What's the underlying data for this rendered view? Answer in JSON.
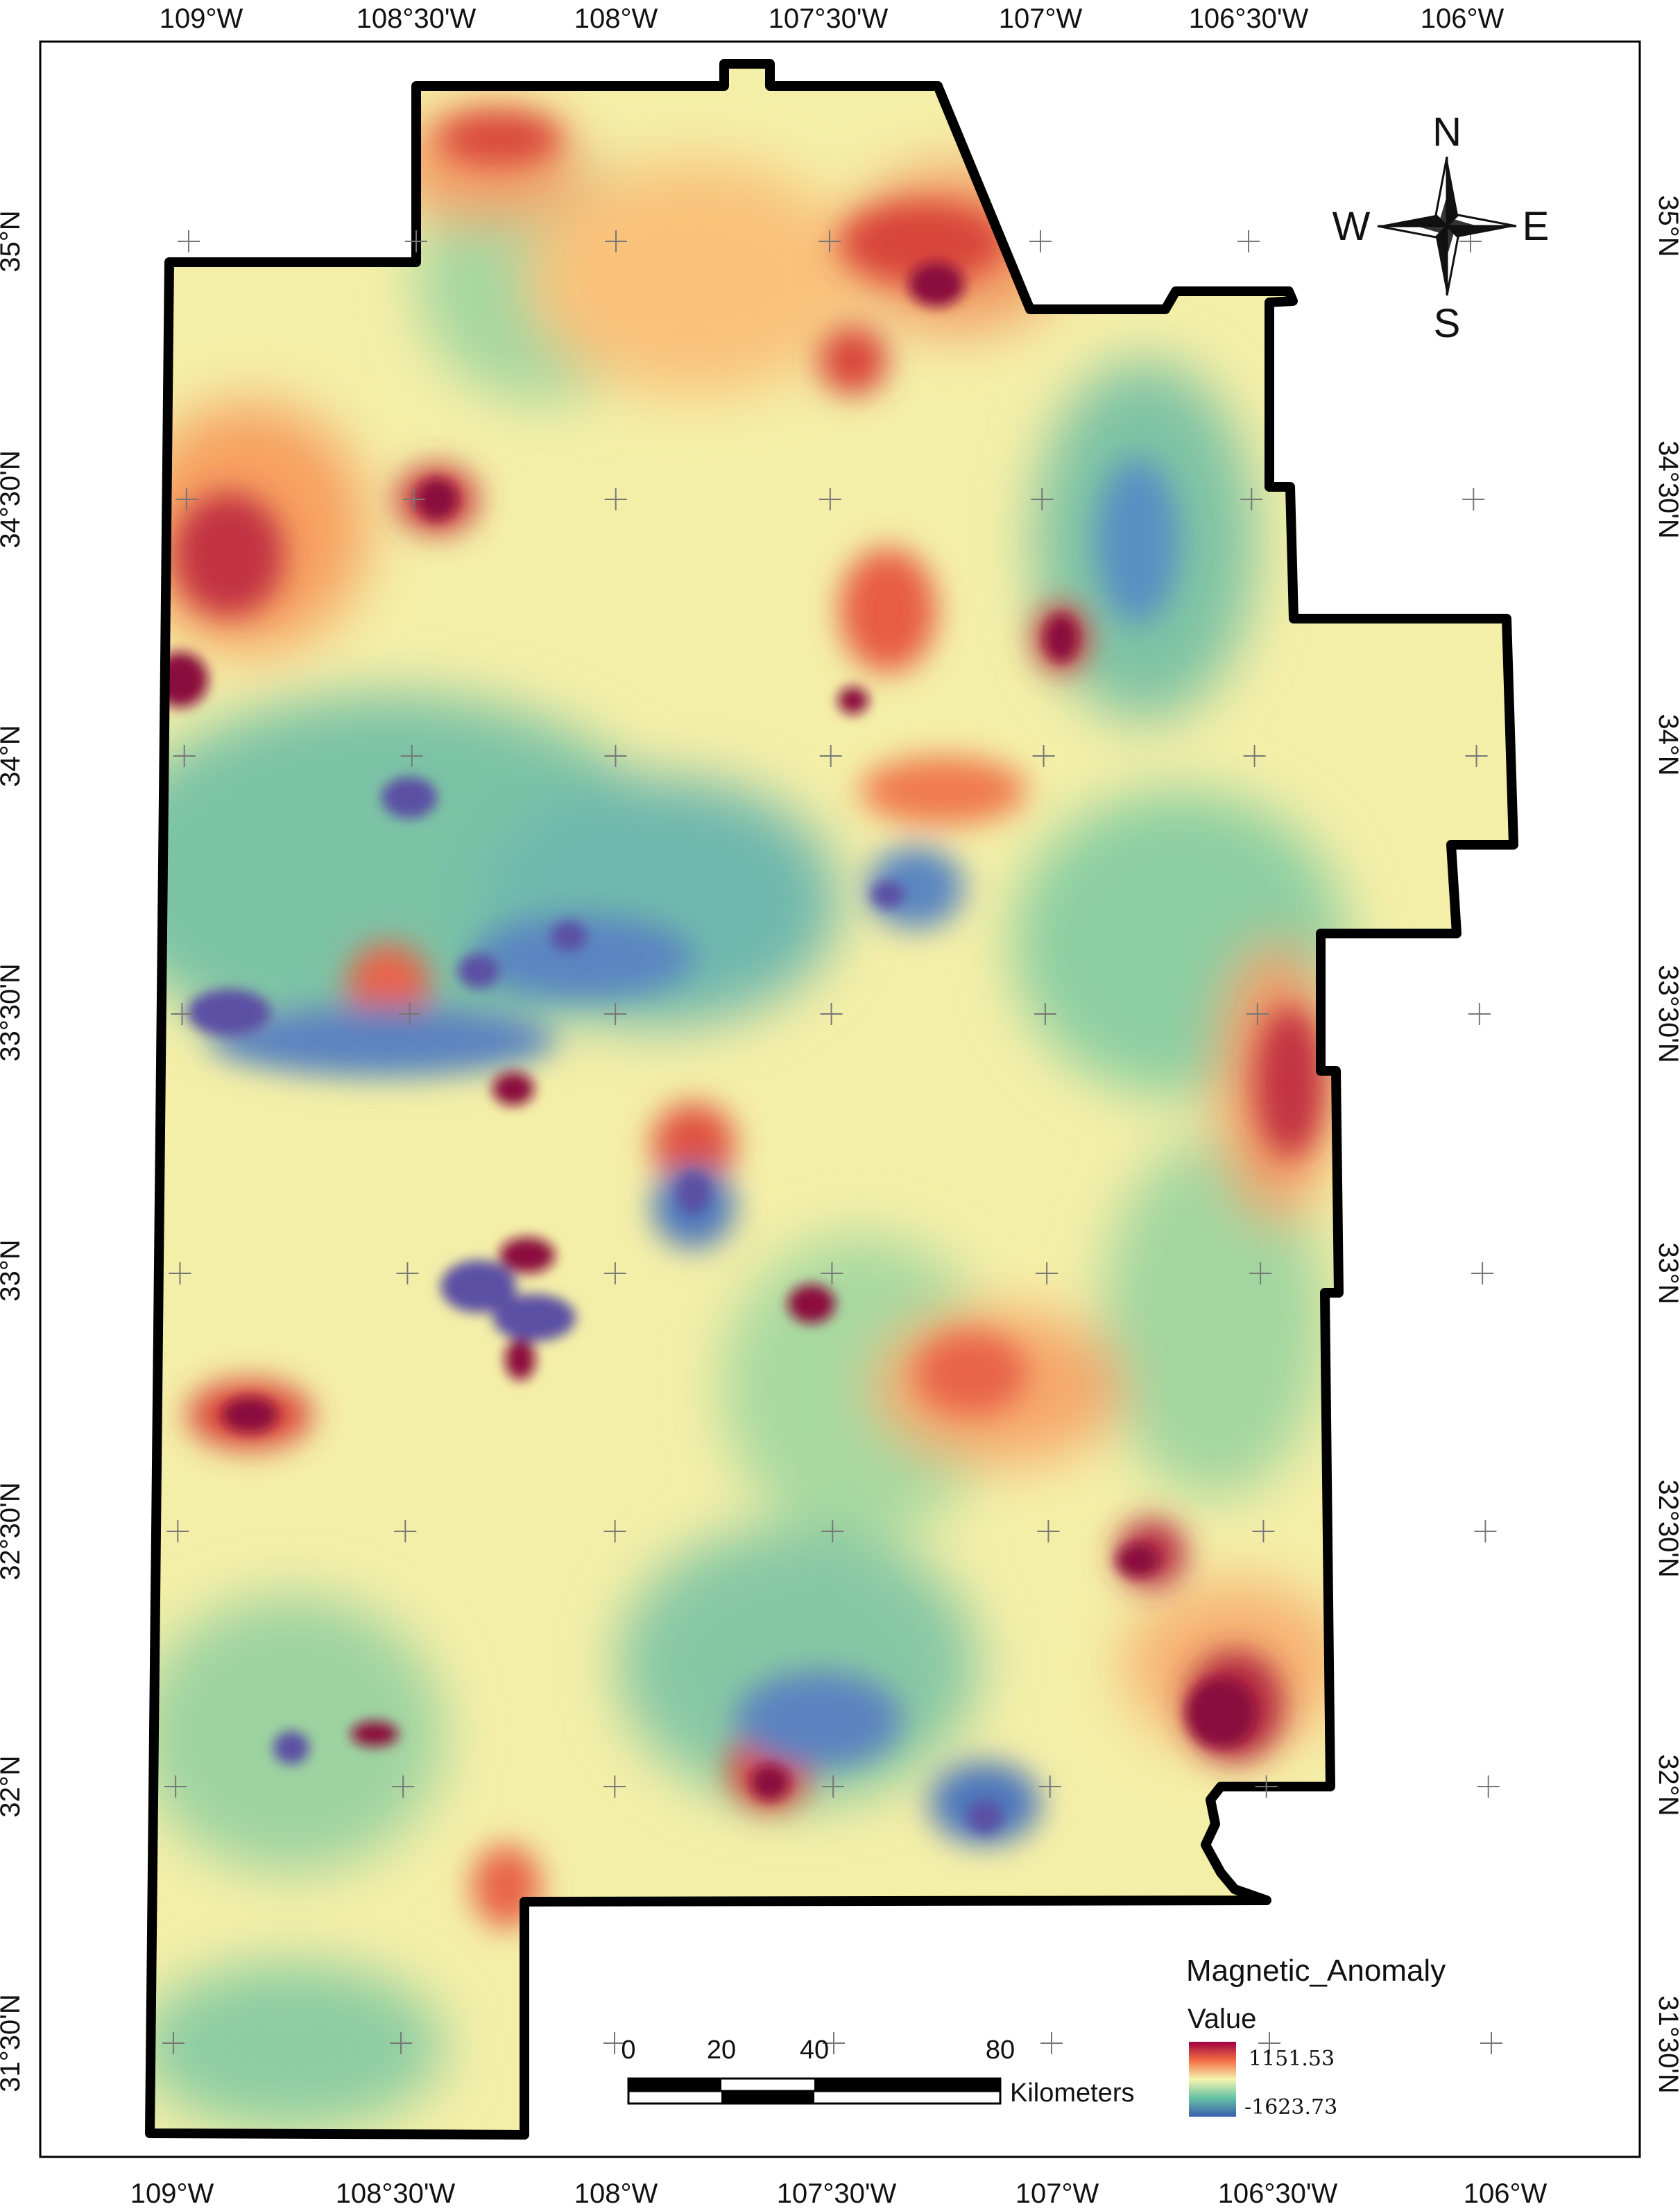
{
  "map": {
    "top_lon_labels": [
      "109°W",
      "108°30'W",
      "108°W",
      "107°30'W",
      "107°W",
      "106°30'W",
      "106°W"
    ],
    "bottom_lon_labels": [
      "109°W",
      "108°30'W",
      "108°W",
      "107°30'W",
      "107°W",
      "106°30'W",
      "106°W"
    ],
    "left_lat_labels": [
      "35°N",
      "34°30'N",
      "34°N",
      "33°30'N",
      "33°N",
      "32°30'N",
      "32°N",
      "31°30'N"
    ],
    "right_lat_labels": [
      "35°N",
      "34°30'N",
      "34°N",
      "33°30'N",
      "33°N",
      "32°30'N",
      "32°N",
      "31°30'N"
    ],
    "colors": {
      "high": "#8b0a3c",
      "mid_high": "#f46d43",
      "mid": "#f7f4b0",
      "mid_low": "#66c2a5",
      "low": "#5e4fa2",
      "boundary": "#000000"
    }
  },
  "compass": {
    "north": "N",
    "south": "S",
    "east": "E",
    "west": "W"
  },
  "legend": {
    "title": "Magnetic_Anomaly",
    "subtitle": "Value",
    "max_label": "1151.53",
    "min_label": "-1623.73"
  },
  "scale_bar": {
    "ticks": [
      "0",
      "20",
      "40",
      "80"
    ],
    "unit": "Kilometers"
  }
}
